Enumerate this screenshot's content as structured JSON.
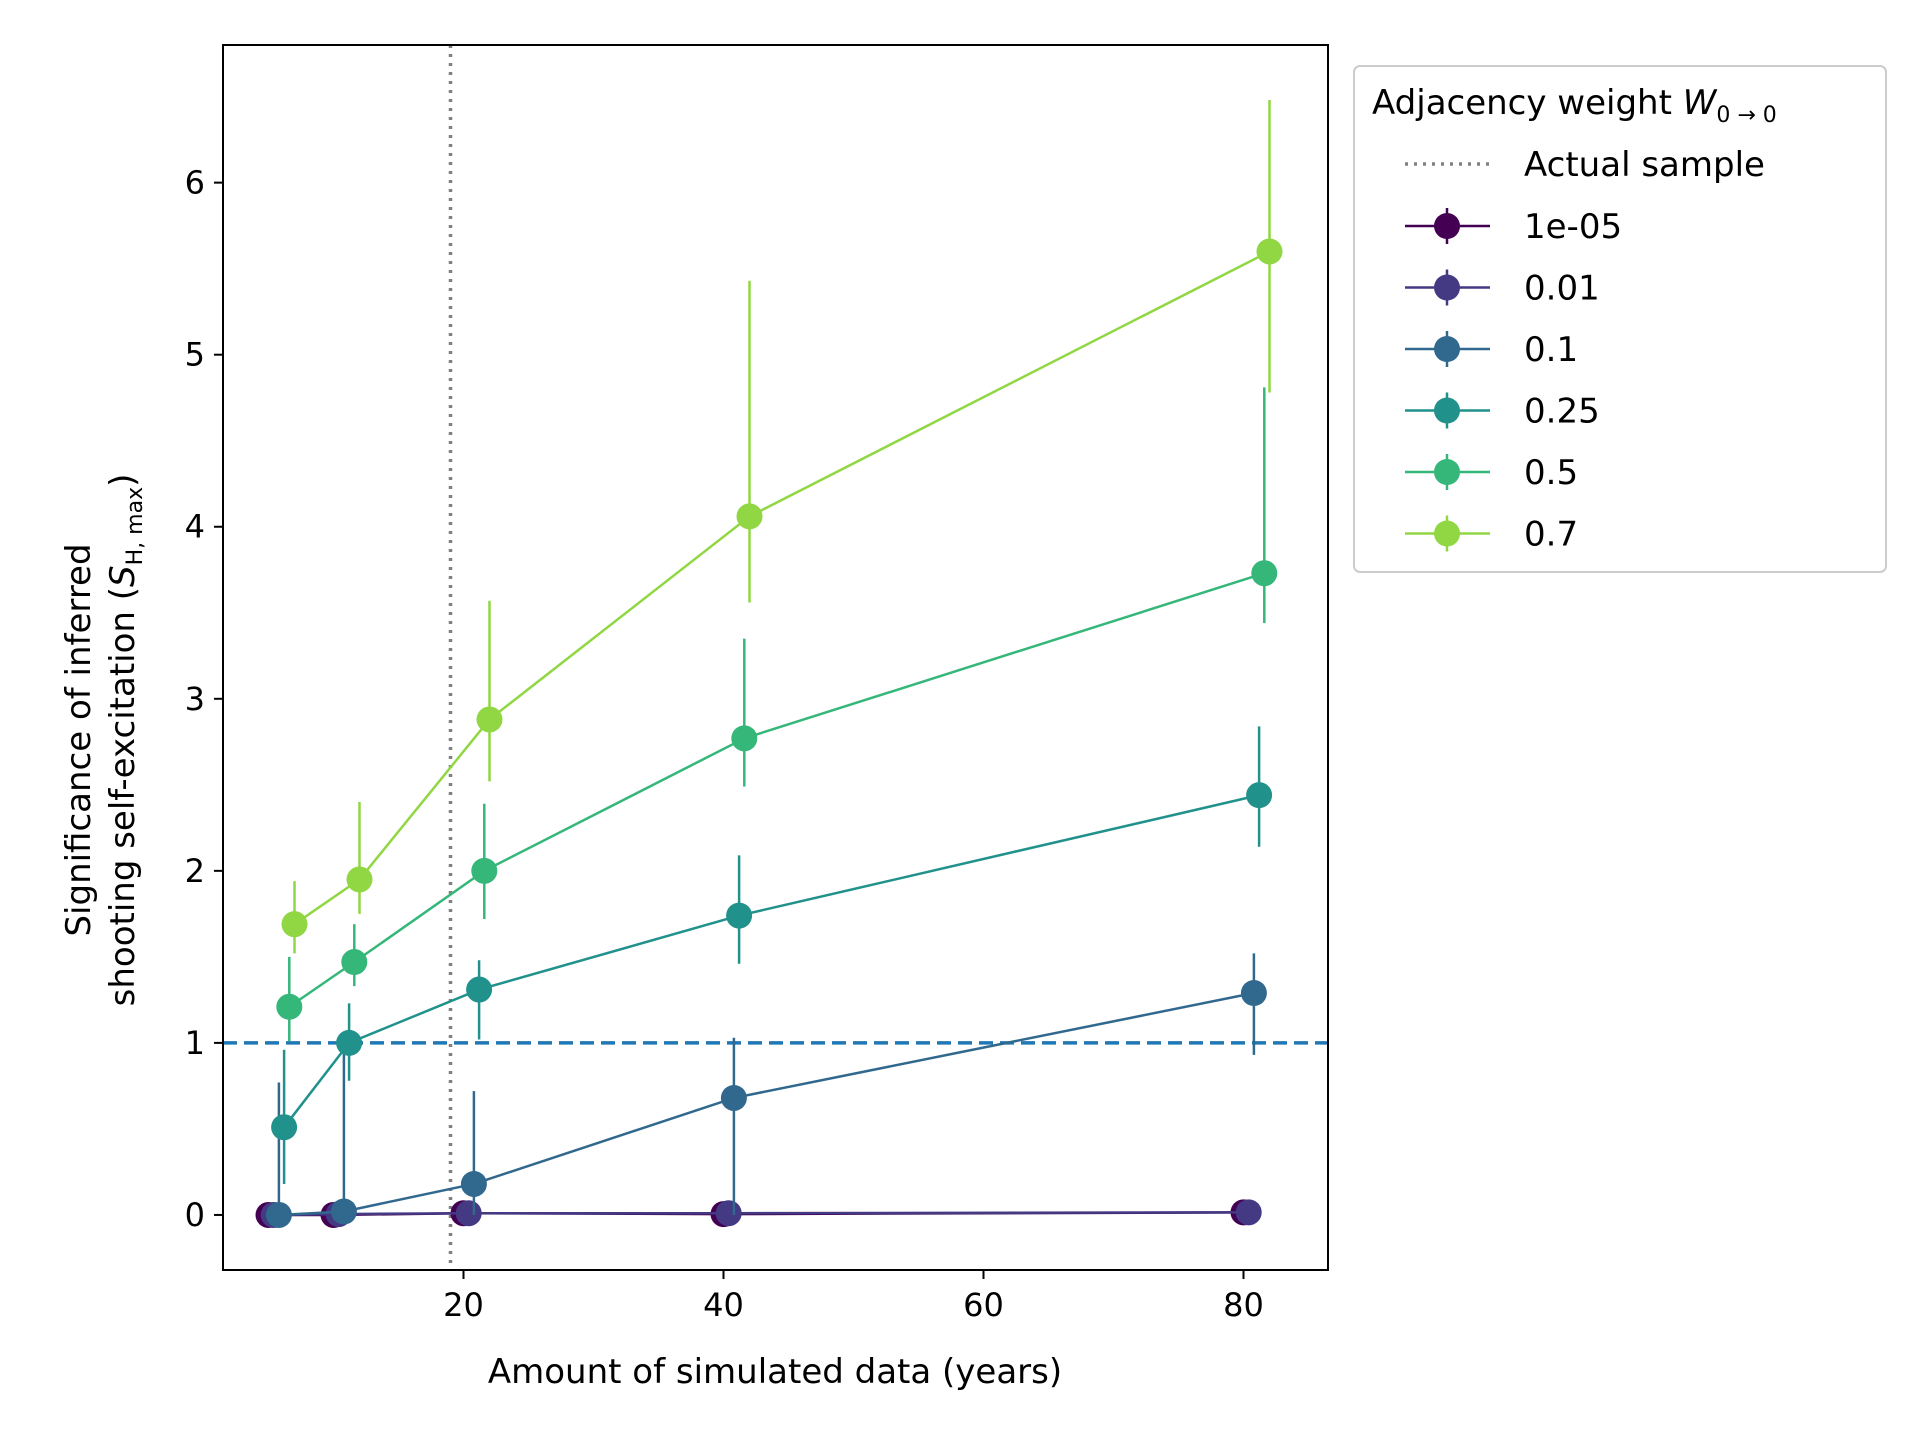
{
  "chart_data": {
    "type": "line",
    "title": "",
    "xlabel": "Amount of simulated data (years)",
    "ylabel_line1": "Significance of inferred",
    "ylabel_line2_prefix": "shooting self-excitation (",
    "ylabel_symbol": "S",
    "ylabel_subscript": "H, max",
    "ylabel_suffix": ")",
    "xlim": [
      1.5,
      86.5
    ],
    "ylim": [
      -0.32,
      6.8
    ],
    "xticks": [
      20,
      40,
      60,
      80
    ],
    "yticks": [
      0,
      1,
      2,
      3,
      4,
      5,
      6
    ],
    "grid": false,
    "reference_lines": [
      {
        "name": "Actual sample",
        "orientation": "vertical",
        "value": 19,
        "style": "dotted",
        "color": "#808080"
      },
      {
        "name": "",
        "orientation": "horizontal",
        "value": 1,
        "style": "dashed",
        "color": "#1f77b4"
      }
    ],
    "legend": {
      "title_text": "Adjacency weight ",
      "title_symbol": "W",
      "title_subscript": "0 → 0",
      "placement": "outside upper right",
      "reference_entry": "Actual sample"
    },
    "series": [
      {
        "name": "1e-05",
        "color": "#440154",
        "x": [
          5,
          10,
          20,
          40,
          80
        ],
        "y": [
          0.0,
          0.0,
          0.01,
          0.005,
          0.015
        ],
        "err_low": [
          0,
          0,
          0,
          0,
          0
        ],
        "err_high": [
          0,
          0,
          0,
          0,
          0
        ]
      },
      {
        "name": "0.01",
        "color": "#443983",
        "x": [
          5.4,
          10.4,
          20.4,
          40.4,
          80.4
        ],
        "y": [
          0.0,
          0.005,
          0.01,
          0.01,
          0.015
        ],
        "err_low": [
          0,
          0,
          0,
          0,
          0
        ],
        "err_high": [
          0,
          0,
          0,
          0,
          0
        ]
      },
      {
        "name": "0.1",
        "color": "#31688e",
        "x": [
          5.8,
          10.8,
          20.8,
          40.8,
          80.8
        ],
        "y": [
          0.0,
          0.02,
          0.18,
          0.68,
          1.29
        ],
        "err_low": [
          0,
          0.02,
          0.18,
          0.68,
          0.36
        ],
        "err_high": [
          0.77,
          0.98,
          0.54,
          0.35,
          0.23
        ]
      },
      {
        "name": "0.25",
        "color": "#21918c",
        "x": [
          6.2,
          11.2,
          21.2,
          41.2,
          81.2
        ],
        "y": [
          0.51,
          1.0,
          1.31,
          1.74,
          2.44
        ],
        "err_low": [
          0.33,
          0.22,
          0.29,
          0.28,
          0.3
        ],
        "err_high": [
          0.45,
          0.23,
          0.17,
          0.35,
          0.4
        ]
      },
      {
        "name": "0.5",
        "color": "#35b779",
        "x": [
          6.6,
          11.6,
          21.6,
          41.6,
          81.6
        ],
        "y": [
          1.21,
          1.47,
          2.0,
          2.77,
          3.73
        ],
        "err_low": [
          0.2,
          0.14,
          0.28,
          0.28,
          0.29
        ],
        "err_high": [
          0.29,
          0.22,
          0.39,
          0.58,
          1.08
        ]
      },
      {
        "name": "0.7",
        "color": "#90d743",
        "x": [
          7,
          12,
          22,
          42,
          82
        ],
        "y": [
          1.69,
          1.95,
          2.88,
          4.06,
          5.6
        ],
        "err_low": [
          0.17,
          0.2,
          0.36,
          0.5,
          0.82
        ],
        "err_high": [
          0.25,
          0.45,
          0.69,
          1.37,
          0.88
        ]
      }
    ]
  }
}
